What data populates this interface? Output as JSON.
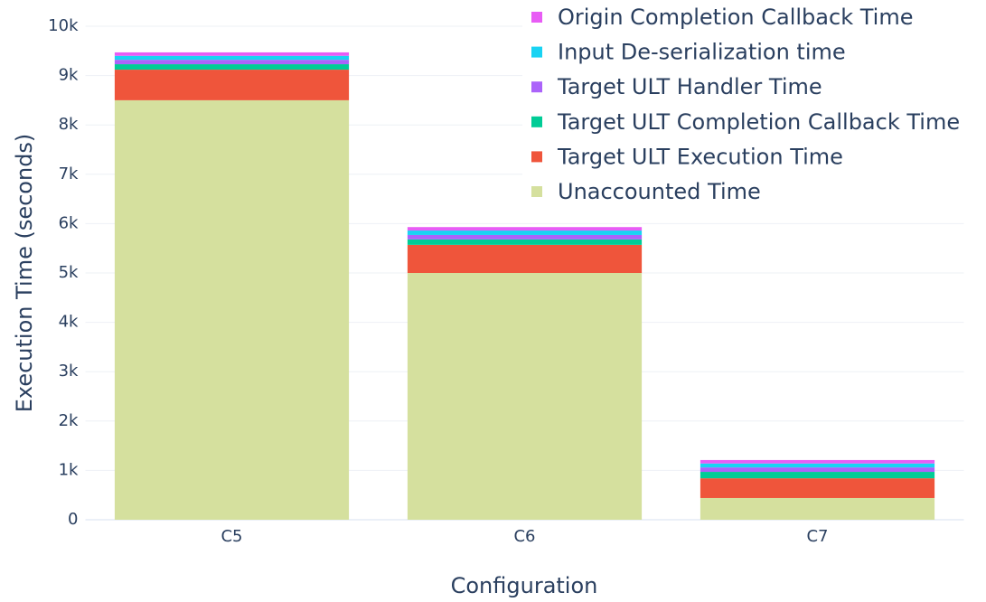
{
  "chart_data": {
    "type": "stacked_bar",
    "x_label": "Configuration",
    "y_label": "Execution Time (seconds)",
    "categories": [
      "C5",
      "C6",
      "C7"
    ],
    "series": [
      {
        "name": "Unaccounted Time",
        "color": "#d5e09e",
        "values": [
          8500,
          5000,
          440
        ]
      },
      {
        "name": "Target ULT Execution Time",
        "color": "#ef553b",
        "values": [
          620,
          570,
          400
        ]
      },
      {
        "name": "Target ULT Completion Callback Time",
        "color": "#00cc96",
        "values": [
          110,
          110,
          130
        ]
      },
      {
        "name": "Target ULT Handler Time",
        "color": "#ab63fa",
        "values": [
          90,
          90,
          90
        ]
      },
      {
        "name": "Input De-serialization time",
        "color": "#19d3f3",
        "values": [
          80,
          90,
          80
        ]
      },
      {
        "name": "Origin Completion Callback Time",
        "color": "#e85cf5",
        "values": [
          70,
          70,
          70
        ]
      }
    ],
    "ylim": [
      0,
      10000
    ],
    "yticks": [
      0,
      {
        "value": 1000,
        "label": "1k"
      },
      {
        "value": 2000,
        "label": "2k"
      },
      {
        "value": 3000,
        "label": "3k"
      },
      {
        "value": 4000,
        "label": "4k"
      },
      {
        "value": 5000,
        "label": "5k"
      },
      {
        "value": 6000,
        "label": "6k"
      },
      {
        "value": 7000,
        "label": "7k"
      },
      {
        "value": 8000,
        "label": "8k"
      },
      {
        "value": 9000,
        "label": "9k"
      },
      {
        "value": 10000,
        "label": "10k"
      }
    ],
    "grid": true,
    "legend": "top-right"
  }
}
